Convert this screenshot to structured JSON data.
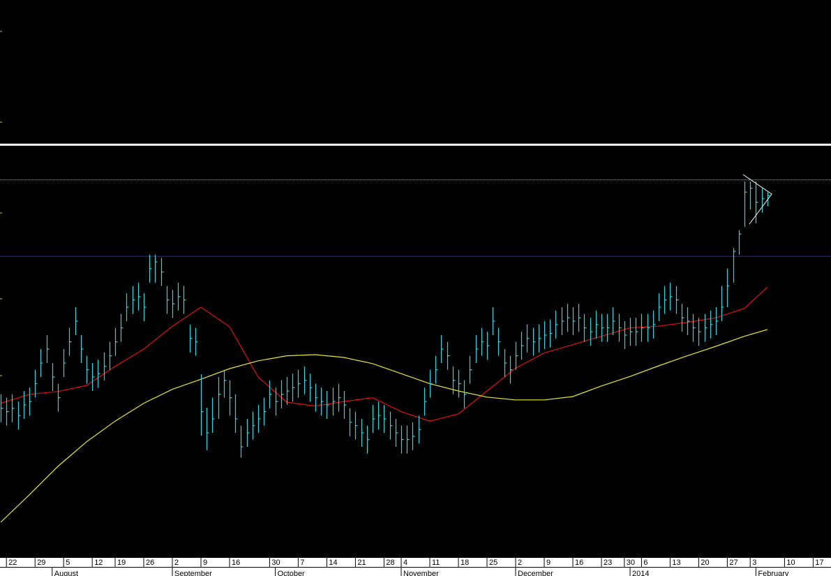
{
  "chart_data": {
    "type": "ohlc",
    "xlim": [
      0,
      145
    ],
    "ylim": [
      0,
      100
    ],
    "bar_color": "#33d6e0",
    "xticks": [
      {
        "value": 1,
        "label": "22"
      },
      {
        "value": 6,
        "label": "29"
      },
      {
        "value": 11,
        "label": "5"
      },
      {
        "value": 16,
        "label": "12"
      },
      {
        "value": 20,
        "label": "19"
      },
      {
        "value": 25,
        "label": "26"
      },
      {
        "value": 30,
        "label": "2"
      },
      {
        "value": 35,
        "label": "9"
      },
      {
        "value": 40,
        "label": "16"
      },
      {
        "value": 47,
        "label": "30"
      },
      {
        "value": 52,
        "label": "7"
      },
      {
        "value": 57,
        "label": "14"
      },
      {
        "value": 62,
        "label": "21"
      },
      {
        "value": 67,
        "label": "28"
      },
      {
        "value": 70,
        "label": "4"
      },
      {
        "value": 75,
        "label": "11"
      },
      {
        "value": 80,
        "label": "18"
      },
      {
        "value": 85,
        "label": "25"
      },
      {
        "value": 90,
        "label": "2"
      },
      {
        "value": 95,
        "label": "9"
      },
      {
        "value": 100,
        "label": "16"
      },
      {
        "value": 105,
        "label": "23"
      },
      {
        "value": 109,
        "label": "30"
      },
      {
        "value": 112,
        "label": "6"
      },
      {
        "value": 117,
        "label": "13"
      },
      {
        "value": 122,
        "label": "20"
      },
      {
        "value": 127,
        "label": "27"
      },
      {
        "value": 131,
        "label": "3"
      },
      {
        "value": 137,
        "label": "10"
      },
      {
        "value": 142,
        "label": "17"
      }
    ],
    "months": [
      {
        "value": 9,
        "label": "August"
      },
      {
        "value": 30,
        "label": "September"
      },
      {
        "value": 48,
        "label": "October"
      },
      {
        "value": 70,
        "label": "November"
      },
      {
        "value": 90,
        "label": "December"
      },
      {
        "value": 110,
        "label": "2014"
      },
      {
        "value": 132,
        "label": "February"
      }
    ],
    "close": [
      26.9,
      26.3,
      26.9,
      25.6,
      27.5,
      28.1,
      31.3,
      35,
      37.5,
      32.5,
      28.8,
      35,
      38.8,
      42.5,
      37.5,
      33.8,
      32.5,
      33.1,
      34.4,
      36.3,
      38.8,
      41.3,
      45,
      46.3,
      46.9,
      45,
      51.9,
      53.1,
      51.3,
      46.3,
      45.6,
      46.9,
      46.3,
      39.4,
      38.8,
      26.3,
      22.5,
      25,
      29.4,
      31.9,
      28.8,
      25,
      20,
      22.5,
      23.8,
      25,
      26.3,
      29.4,
      28.1,
      29.4,
      30,
      30.6,
      31.3,
      31.9,
      30.6,
      28.8,
      28.1,
      27.5,
      28.1,
      28.8,
      27.5,
      24.4,
      23.8,
      22.5,
      21.3,
      25,
      25.6,
      25,
      23.8,
      22.5,
      21.3,
      21.3,
      21.9,
      23.1,
      28.1,
      31.3,
      33.8,
      37.5,
      36.3,
      31.9,
      31.3,
      29.4,
      33.8,
      37.5,
      38.8,
      38.1,
      42.5,
      38.8,
      35,
      33.8,
      36.3,
      38.1,
      39.4,
      38.8,
      39.4,
      40,
      40.3,
      41.9,
      42.5,
      43.1,
      42.5,
      43.1,
      41.3,
      40.6,
      41.9,
      41.3,
      41.3,
      42.5,
      41.3,
      40,
      40.6,
      40.6,
      41.3,
      41.3,
      41.9,
      45,
      46.3,
      46.9,
      46.3,
      43.1,
      42.5,
      41.3,
      40.6,
      41.3,
      41.9,
      42.5,
      45,
      48.8,
      55,
      58.1,
      65.6,
      66.3,
      63.8,
      64.4,
      65
    ],
    "high": [
      29.4,
      28.8,
      29.4,
      28.1,
      30,
      30.6,
      33.8,
      37.5,
      40,
      35,
      31.3,
      37.5,
      41.3,
      45,
      40,
      36.3,
      35,
      35.6,
      36.9,
      38.8,
      41.3,
      43.8,
      47.5,
      48.8,
      49.4,
      47.5,
      54.4,
      54.4,
      53.8,
      48.8,
      48.1,
      49.4,
      48.8,
      41.9,
      41.3,
      33,
      27,
      28.8,
      32.5,
      33.8,
      31.9,
      29.4,
      23.8,
      25,
      26.3,
      27.5,
      28.8,
      31.9,
      30.6,
      31.9,
      32.5,
      33.1,
      33.8,
      34.4,
      33.1,
      31.3,
      30.6,
      30,
      30.6,
      31.3,
      30,
      26.9,
      26.3,
      25,
      23.8,
      27.5,
      28.1,
      27.5,
      26.3,
      25,
      23.8,
      23.8,
      24.4,
      25.6,
      30.6,
      33.8,
      36.3,
      40,
      38.8,
      34.4,
      33.8,
      31.9,
      36.3,
      40,
      41.3,
      40.6,
      45,
      41.3,
      37.5,
      36.3,
      38.8,
      40.6,
      41.9,
      41.3,
      41.9,
      42.5,
      42.8,
      44.4,
      45,
      45.6,
      45,
      45.6,
      43.8,
      43.1,
      44.4,
      43.8,
      43.8,
      45,
      43.8,
      42.5,
      43.1,
      43.1,
      43.8,
      43.8,
      44.4,
      47.5,
      48.8,
      49.4,
      48.8,
      45.6,
      45,
      43.8,
      43.1,
      43.8,
      44.4,
      45,
      48.8,
      51.9,
      55.6,
      58.8,
      67.5,
      67.5,
      67.5,
      66.3,
      65.6
    ],
    "low": [
      24.4,
      23.8,
      24.4,
      23.1,
      25,
      25.6,
      28.8,
      32.5,
      35,
      30,
      26.3,
      32.5,
      36.3,
      40,
      35,
      31.3,
      30,
      30.6,
      31.9,
      33.8,
      36.3,
      38.8,
      42.5,
      43.8,
      44.4,
      42.5,
      49.4,
      49.4,
      48.8,
      43.8,
      43.1,
      44.4,
      43.8,
      36.9,
      36.3,
      22,
      19.4,
      22.5,
      25,
      28.8,
      25.6,
      22.5,
      18.1,
      20,
      21.3,
      22.5,
      23.8,
      26.9,
      25.6,
      26.9,
      27.5,
      28.1,
      28.8,
      29.4,
      28.1,
      26.3,
      25.6,
      25,
      25.6,
      26.3,
      25,
      21.9,
      21.3,
      20,
      18.8,
      22.5,
      23.1,
      22.5,
      21.3,
      20,
      18.8,
      18.8,
      19.4,
      20.6,
      25.6,
      28.8,
      31.3,
      35,
      33.8,
      29.4,
      28.8,
      26.9,
      31.3,
      35,
      36.3,
      35.6,
      40,
      36.3,
      32.5,
      31.3,
      33.8,
      35.6,
      36.9,
      36.3,
      36.9,
      37.5,
      37.8,
      39.4,
      40,
      40.6,
      40,
      40.6,
      38.8,
      38.1,
      39.4,
      38.8,
      38.8,
      40,
      38.8,
      37.5,
      38.1,
      38.1,
      38.8,
      38.8,
      39.4,
      42.5,
      43.8,
      44.4,
      43.8,
      40.6,
      40,
      38.8,
      38.1,
      38.8,
      39.4,
      40,
      42.5,
      45,
      49.4,
      54.4,
      59.4,
      62.5,
      60,
      61.9,
      63.1
    ],
    "lines": [
      {
        "color": "#e01010",
        "x": [
          0,
          5,
          10,
          15,
          20,
          25,
          30,
          35,
          40,
          45,
          50,
          55,
          60,
          65,
          70,
          75,
          80,
          85,
          90,
          95,
          100,
          105,
          110,
          115,
          120,
          125,
          130,
          134
        ],
        "values": [
          27.8,
          29.4,
          29.9,
          31,
          34.4,
          37.5,
          41.6,
          45,
          41.5,
          32.5,
          28,
          27.3,
          28.1,
          28.8,
          26.3,
          24.6,
          25.9,
          30,
          34.1,
          36.8,
          38.3,
          39.8,
          41.3,
          41.6,
          42.3,
          43.1,
          44.8,
          48.6
        ]
      },
      {
        "color": "#e8e830",
        "x": [
          0,
          5,
          10,
          15,
          20,
          25,
          30,
          35,
          40,
          45,
          50,
          55,
          60,
          65,
          70,
          75,
          80,
          85,
          90,
          95,
          100,
          105,
          110,
          115,
          120,
          125,
          130,
          134
        ],
        "values": [
          6.5,
          11.4,
          16.5,
          20.9,
          24.6,
          27.8,
          30.3,
          32.1,
          34,
          35.4,
          36.3,
          36.5,
          36,
          34.9,
          33.1,
          31.3,
          30,
          28.9,
          28.4,
          28.4,
          29,
          30.9,
          32.6,
          34.5,
          36.3,
          38,
          39.8,
          41
        ]
      }
    ],
    "hlines": [
      {
        "value": 74.1,
        "color": "#ffffff",
        "width": 3
      },
      {
        "value": 67.8,
        "color": "#aaaaaa",
        "width": 1
      },
      {
        "value": 54.1,
        "color": "#2020d0",
        "width": 1
      }
    ]
  }
}
